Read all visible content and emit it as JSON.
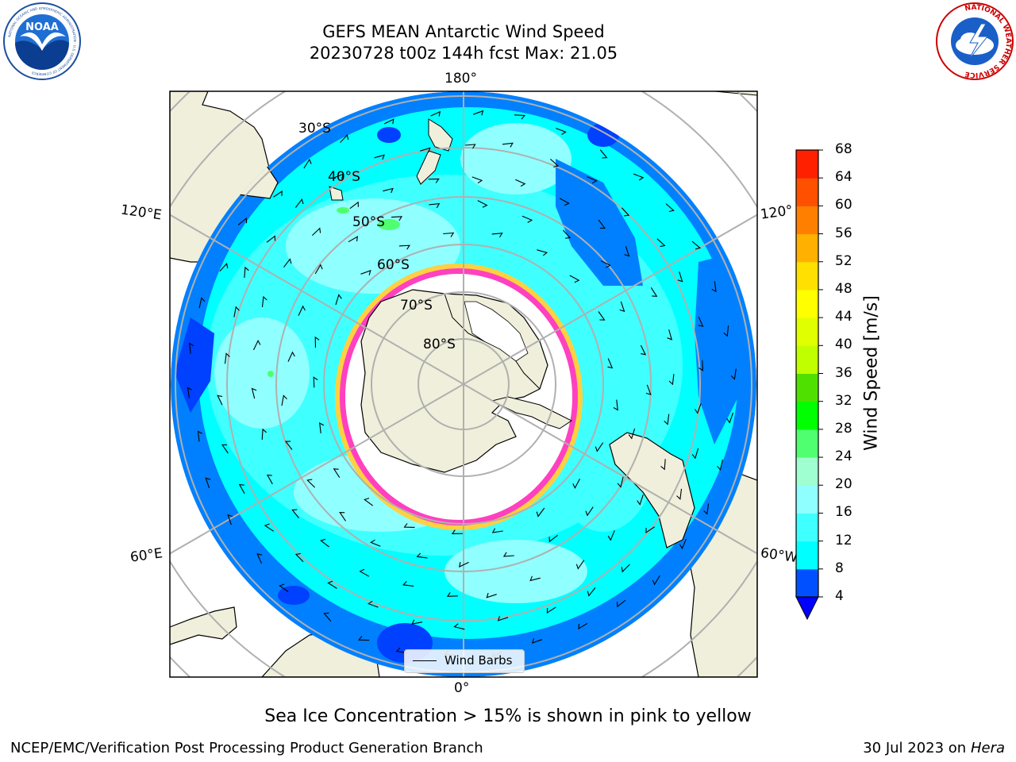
{
  "header": {
    "title_line1": "GEFS MEAN Antarctic Wind Speed",
    "title_line2": "20230728 t00z 144h fcst   Max: 21.05"
  },
  "logos": {
    "noaa": {
      "text": "NOAA",
      "ring_text": "NATIONAL OCEANIC AND ATMOSPHERIC ADMINISTRATION · U.S. DEPARTMENT OF COMMERCE"
    },
    "nws": {
      "ring_text": "NATIONAL WEATHER SERVICE"
    }
  },
  "map": {
    "projection": "south-polar-stereographic",
    "longitude_labels": {
      "top": "180°",
      "bottom": "0°",
      "left_upper": "120°E",
      "left_lower": "60°E",
      "right_upper": "120°",
      "right_lower": "60°W"
    },
    "latitude_labels": [
      "30°S",
      "40°S",
      "50°S",
      "60°S",
      "70°S",
      "80°S"
    ],
    "legend_label": "Wind Barbs"
  },
  "colorbar": {
    "label": "Wind Speed [m/s]",
    "ticks": [
      "4",
      "8",
      "12",
      "16",
      "20",
      "24",
      "28",
      "32",
      "36",
      "40",
      "44",
      "48",
      "52",
      "56",
      "60",
      "64",
      "68"
    ],
    "colors": [
      "#0050ff",
      "#00ffff",
      "#40ffff",
      "#90ffff",
      "#a0ffd0",
      "#50ff70",
      "#00ff00",
      "#50e000",
      "#c0ff00",
      "#e0ff00",
      "#ffff00",
      "#ffe000",
      "#ffb000",
      "#ff8000",
      "#ff5000",
      "#ff2000"
    ],
    "extend_color": "#0000ff"
  },
  "colors": {
    "land": "#efefdb",
    "ice": "#ffffff",
    "ice_edge_pink": "#ff40c0",
    "ice_edge_yellow": "#ffd040",
    "grid": "#b0b0b0"
  },
  "footer": {
    "note": "Sea Ice Concentration > 15% is shown in pink to yellow",
    "left": "NCEP/EMC/Verification Post Processing Product Generation Branch",
    "right_prefix": "30 Jul 2023 on ",
    "right_machine": "Hera"
  }
}
